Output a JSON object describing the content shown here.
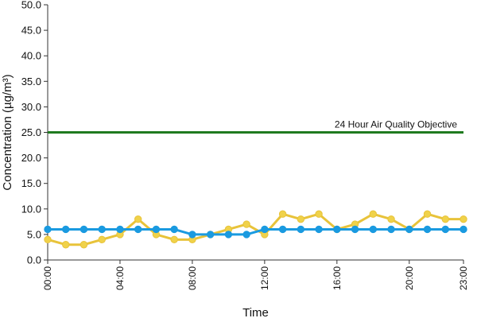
{
  "chart_data": {
    "type": "line",
    "title": "",
    "xlabel": "Time",
    "ylabel": "Concentration (µg/m³)",
    "ylim": [
      0,
      50
    ],
    "yticks": [
      "0.0",
      "5.0",
      "10.0",
      "15.0",
      "20.0",
      "25.0",
      "30.0",
      "35.0",
      "40.0",
      "45.0",
      "50.0"
    ],
    "xticks": [
      "00:00",
      "04:00",
      "08:00",
      "12:00",
      "16:00",
      "20:00",
      "23:00"
    ],
    "x": [
      "00:00",
      "01:00",
      "02:00",
      "03:00",
      "04:00",
      "05:00",
      "06:00",
      "07:00",
      "08:00",
      "09:00",
      "10:00",
      "11:00",
      "12:00",
      "13:00",
      "14:00",
      "15:00",
      "16:00",
      "17:00",
      "18:00",
      "19:00",
      "20:00",
      "21:00",
      "22:00",
      "23:00"
    ],
    "grid": false,
    "legend": "none",
    "objective": {
      "label": "24 Hour Air Quality Objective",
      "value": 25,
      "color": "#1f7a1f"
    },
    "series": [
      {
        "color": "#e8c33a",
        "marker_color": "#f0d24a",
        "values": [
          4,
          3,
          3,
          4,
          5,
          8,
          5,
          4,
          4,
          5,
          6,
          7,
          5,
          9,
          8,
          9,
          6,
          7,
          9,
          8,
          6,
          9,
          8,
          8
        ]
      },
      {
        "color": "#1a9ae0",
        "marker_color": "#1a9ae0",
        "values": [
          6,
          6,
          6,
          6,
          6,
          6,
          6,
          6,
          5,
          5,
          5,
          5,
          6,
          6,
          6,
          6,
          6,
          6,
          6,
          6,
          6,
          6,
          6,
          6
        ]
      }
    ]
  }
}
